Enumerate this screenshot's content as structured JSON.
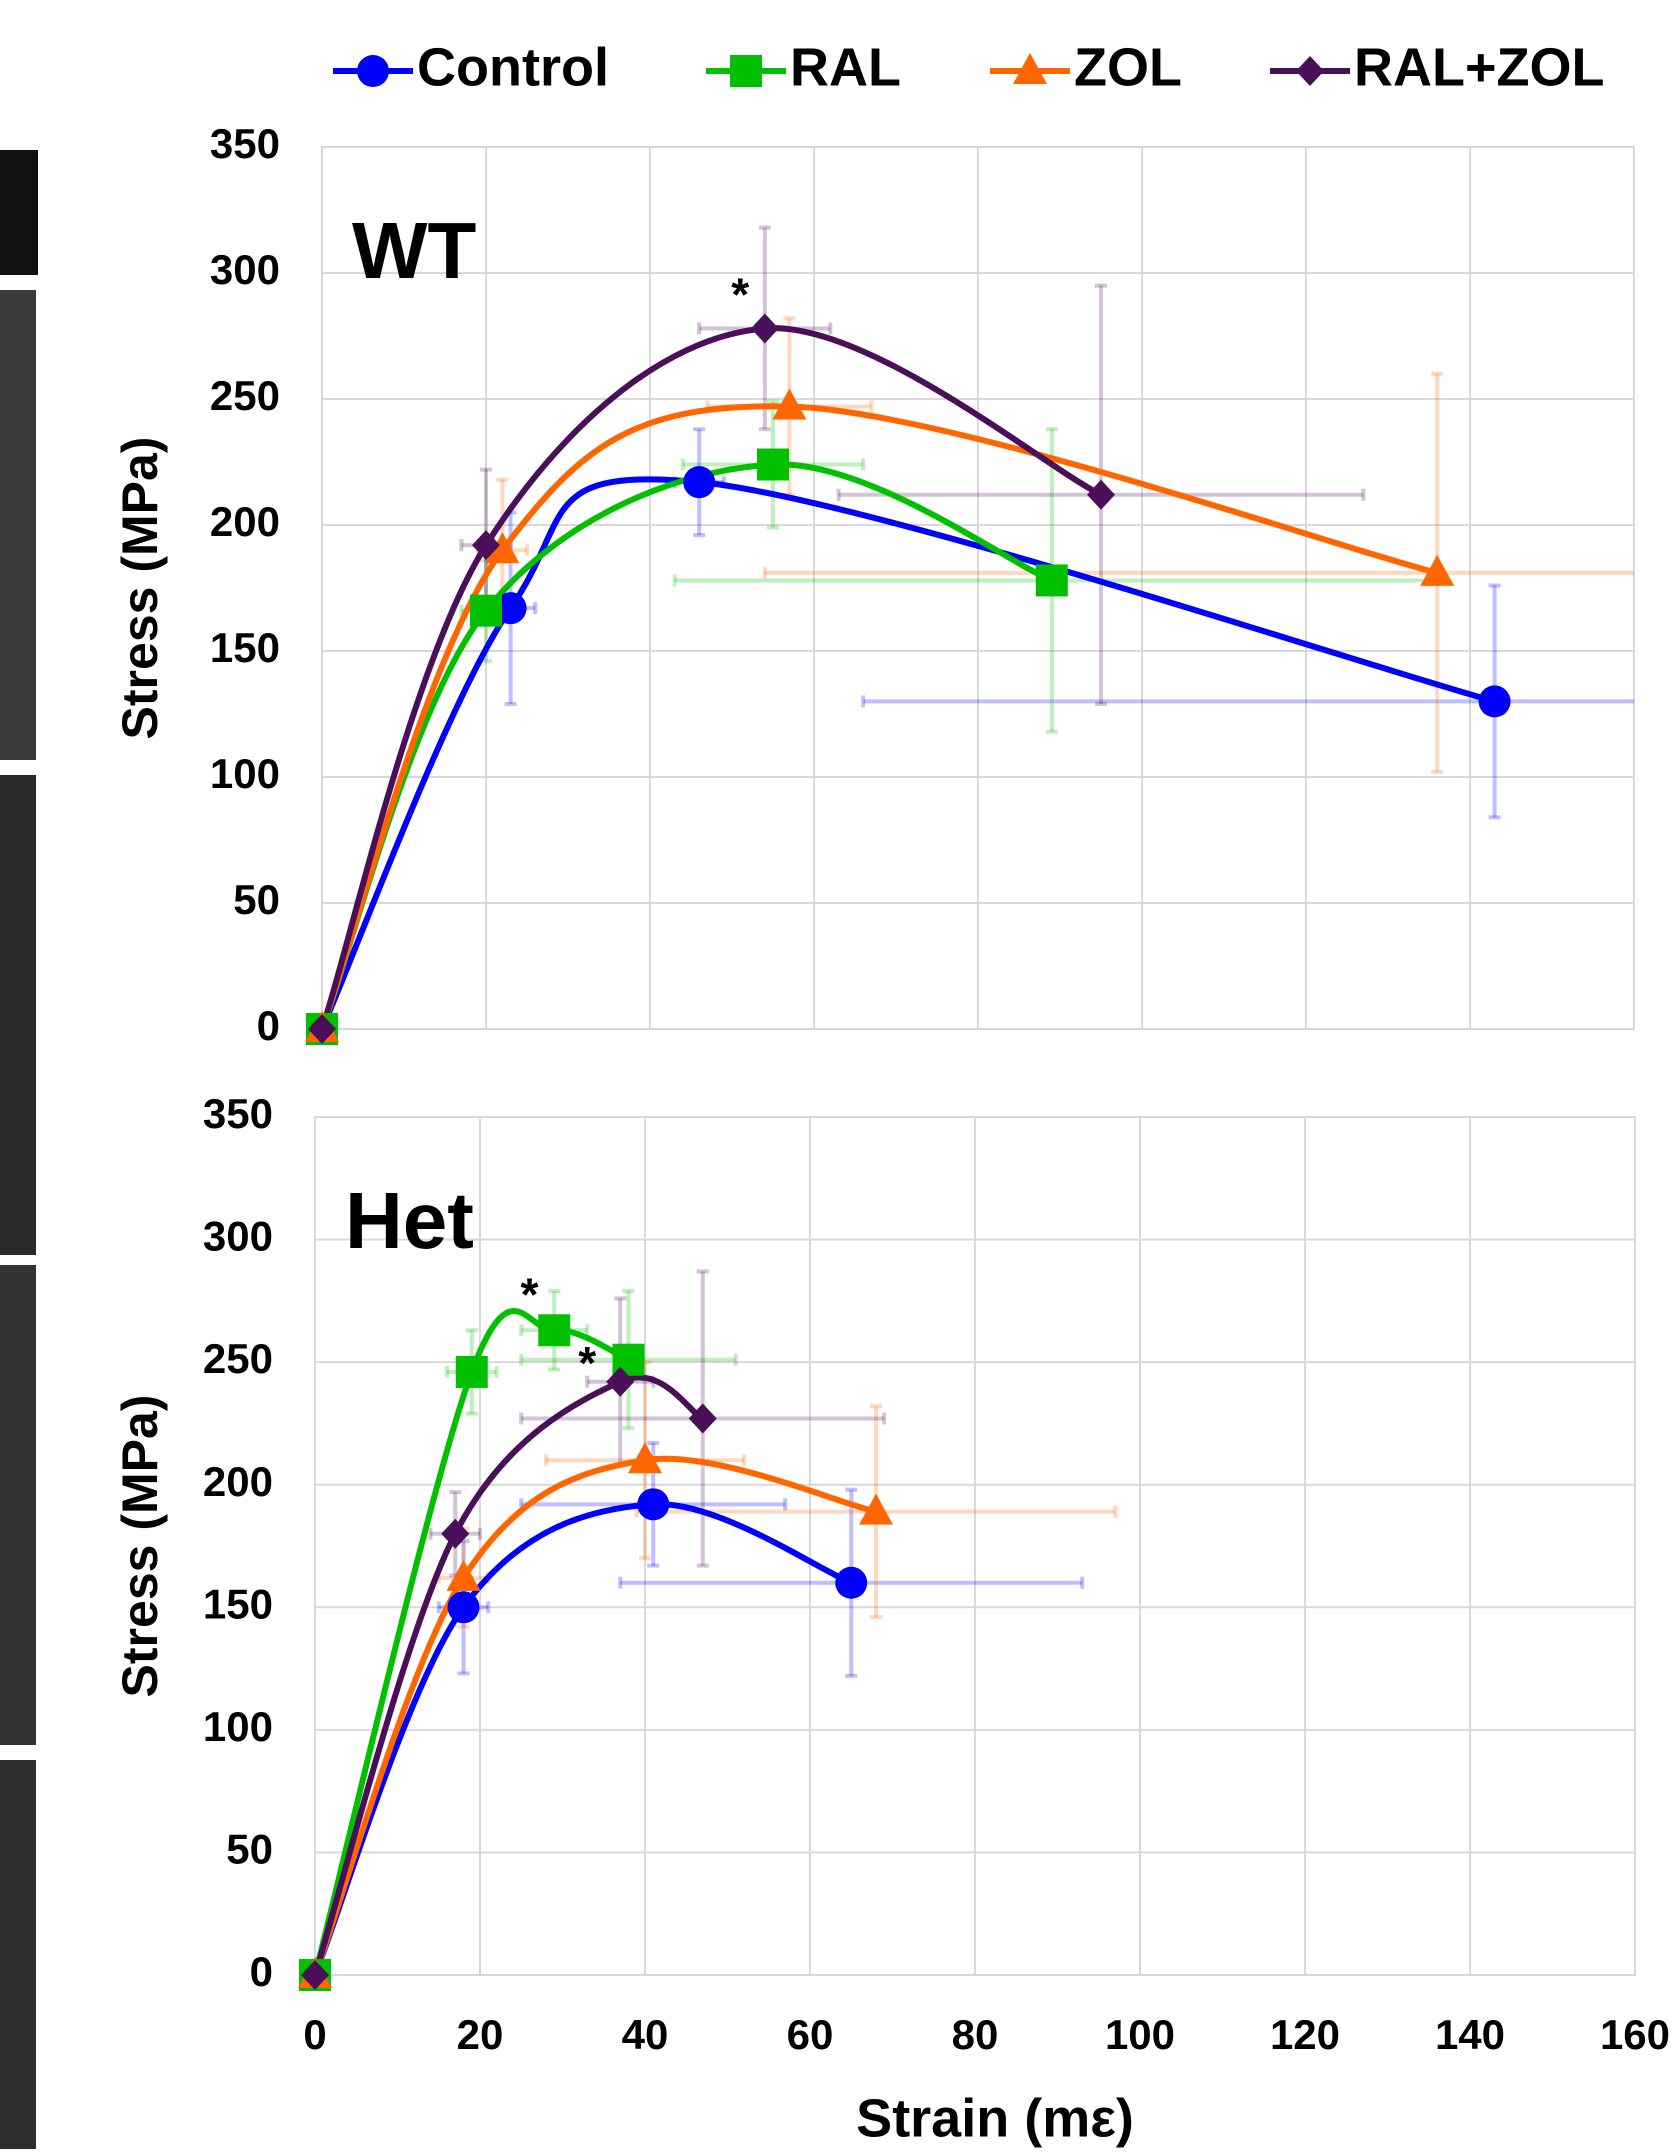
{
  "chart_data": [
    {
      "type": "line",
      "panel_label": "WT",
      "ylabel": "Stress (MPa)",
      "xlim": [
        0,
        160
      ],
      "xticks": [
        0,
        20,
        40,
        60,
        80,
        100,
        120,
        140,
        160
      ],
      "xtick_labels": false,
      "ylim": [
        0,
        350
      ],
      "yticks": [
        0,
        50,
        100,
        150,
        200,
        250,
        300,
        350
      ],
      "grid": true,
      "smooth": true,
      "legend": "top",
      "series": [
        {
          "name": "Control",
          "color": "#0000ff",
          "marker": "circle",
          "x": [
            0,
            23,
            46,
            143
          ],
          "values": [
            0,
            167,
            217,
            130
          ],
          "xerr": [
            0,
            3,
            3,
            77
          ],
          "yerr": [
            0,
            38,
            21,
            46
          ]
        },
        {
          "name": "RAL",
          "color": "#00c000",
          "marker": "square",
          "x": [
            0,
            20,
            55,
            89
          ],
          "values": [
            0,
            166,
            224,
            178
          ],
          "xerr": [
            0,
            3,
            11,
            46
          ],
          "yerr": [
            0,
            20,
            25,
            60
          ]
        },
        {
          "name": "ZOL",
          "color": "#ff6600",
          "marker": "triangle",
          "x": [
            0,
            22,
            57,
            136
          ],
          "values": [
            0,
            190,
            247,
            181
          ],
          "xerr": [
            0,
            3,
            10,
            82
          ],
          "yerr": [
            0,
            28,
            35,
            79
          ]
        },
        {
          "name": "RAL+ZOL",
          "color": "#4b0f5a",
          "marker": "diamond",
          "x": [
            0,
            20,
            54,
            95
          ],
          "values": [
            0,
            192,
            278,
            212
          ],
          "xerr": [
            0,
            3,
            8,
            32
          ],
          "yerr": [
            0,
            30,
            40,
            83
          ]
        }
      ],
      "annotations": [
        {
          "text": "*",
          "x": 51,
          "y": 290
        }
      ]
    },
    {
      "type": "line",
      "panel_label": "Het",
      "ylabel": "Stress (MPa)",
      "xlabel": "Strain (mε)",
      "xlim": [
        0,
        160
      ],
      "xticks": [
        0,
        20,
        40,
        60,
        80,
        100,
        120,
        140,
        160
      ],
      "xtick_labels": true,
      "ylim": [
        0,
        350
      ],
      "yticks": [
        0,
        50,
        100,
        150,
        200,
        250,
        300,
        350
      ],
      "grid": true,
      "smooth": true,
      "series": [
        {
          "color": "#0000ff",
          "marker": "circle",
          "x": [
            0,
            18,
            41,
            65
          ],
          "values": [
            0,
            150,
            192,
            160
          ],
          "xerr": [
            0,
            3,
            16,
            28
          ],
          "yerr": [
            0,
            27,
            25,
            38
          ]
        },
        {
          "color": "#00c000",
          "marker": "square",
          "x": [
            0,
            19,
            29,
            38
          ],
          "values": [
            0,
            246,
            263,
            251
          ],
          "xerr": [
            0,
            3,
            4,
            13
          ],
          "yerr": [
            0,
            17,
            16,
            28
          ]
        },
        {
          "color": "#ff6600",
          "marker": "triangle",
          "x": [
            0,
            18,
            40,
            68
          ],
          "values": [
            0,
            162,
            210,
            189
          ],
          "xerr": [
            0,
            3,
            12,
            29
          ],
          "yerr": [
            0,
            20,
            40,
            43
          ]
        },
        {
          "color": "#4b0f5a",
          "marker": "diamond",
          "x": [
            0,
            17,
            37,
            47
          ],
          "values": [
            0,
            180,
            242,
            227
          ],
          "xerr": [
            0,
            3,
            4,
            22
          ],
          "yerr": [
            0,
            17,
            34,
            60
          ]
        }
      ],
      "annotations": [
        {
          "text": "*",
          "x": 26,
          "y": 276
        },
        {
          "text": "*",
          "x": 33,
          "y": 248
        }
      ]
    }
  ]
}
